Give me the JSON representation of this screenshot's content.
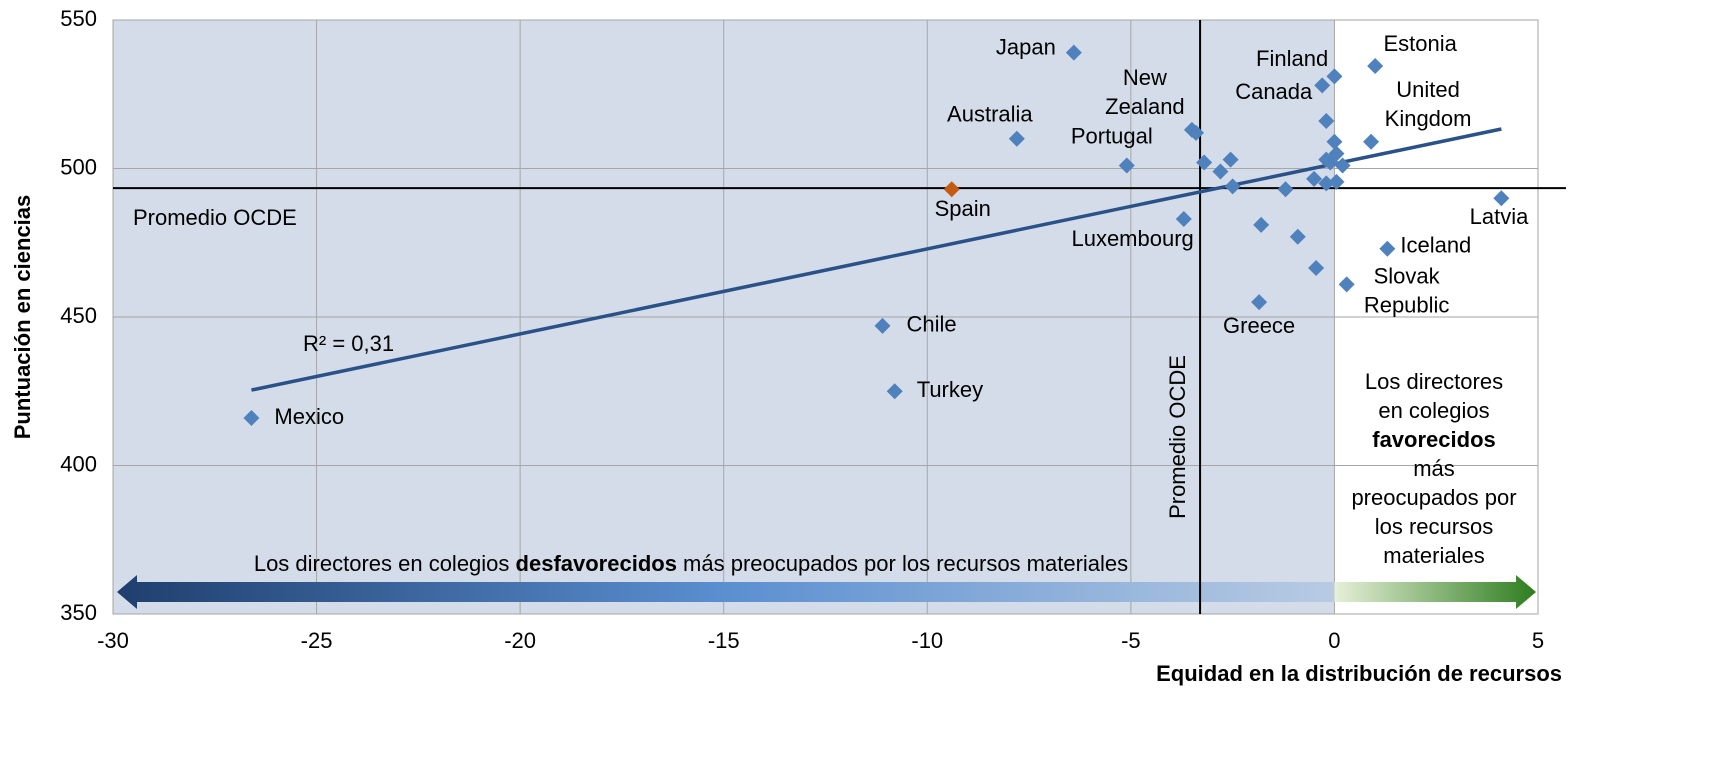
{
  "chart_data": {
    "type": "scatter",
    "xlabel": "Equidad en la distribución de recursos",
    "ylabel": "Puntuación en ciencias",
    "xlim": [
      -30,
      5
    ],
    "xticks": [
      -30,
      -25,
      -20,
      -15,
      -10,
      -5,
      0,
      5
    ],
    "ylim": [
      350,
      550
    ],
    "yticks": [
      350,
      400,
      450,
      500,
      550
    ],
    "grid": true,
    "color": "#4f81bd",
    "shaded_region": {
      "x": [
        -30,
        0
      ],
      "color": "#d3dce8"
    },
    "points": [
      {
        "x": -6.4,
        "y": 539,
        "label": "Japan"
      },
      {
        "x": -7.8,
        "y": 510,
        "label": "Australia"
      },
      {
        "x": -5.1,
        "y": 501,
        "label": "Portugal"
      },
      {
        "x": -3.5,
        "y": 513,
        "label": "New Zealand"
      },
      {
        "x": -9.4,
        "y": 493,
        "label": "Spain",
        "color": "#c55a11"
      },
      {
        "x": -3.7,
        "y": 483,
        "label": "Luxembourg"
      },
      {
        "x": -11.1,
        "y": 447,
        "label": "Chile"
      },
      {
        "x": -10.8,
        "y": 425,
        "label": "Turkey"
      },
      {
        "x": -26.6,
        "y": 416,
        "label": "Mexico"
      },
      {
        "x": -0.3,
        "y": 528,
        "label": "Finland"
      },
      {
        "x": -0.2,
        "y": 516,
        "label": "Canada"
      },
      {
        "x": 1.0,
        "y": 534.5,
        "label": "Estonia"
      },
      {
        "x": 0.9,
        "y": 509,
        "label": "United Kingdom"
      },
      {
        "x": 4.1,
        "y": 490,
        "label": "Latvia"
      },
      {
        "x": 1.3,
        "y": 473,
        "label": "Iceland"
      },
      {
        "x": 0.3,
        "y": 461,
        "label": "Slovak Republic"
      },
      {
        "x": -1.85,
        "y": 455,
        "label": "Greece"
      },
      {
        "x": 0,
        "y": 531
      },
      {
        "x": -3.4,
        "y": 512
      },
      {
        "x": -3.2,
        "y": 502
      },
      {
        "x": -2.8,
        "y": 499
      },
      {
        "x": -2.55,
        "y": 503
      },
      {
        "x": -2.5,
        "y": 494
      },
      {
        "x": -1.8,
        "y": 481
      },
      {
        "x": -1.2,
        "y": 493
      },
      {
        "x": -0.9,
        "y": 477
      },
      {
        "x": -0.45,
        "y": 466.5
      },
      {
        "x": -0.5,
        "y": 496.5
      },
      {
        "x": -0.2,
        "y": 495
      },
      {
        "x": 0,
        "y": 509
      },
      {
        "x": -0.1,
        "y": 502
      },
      {
        "x": 0.05,
        "y": 505
      },
      {
        "x": 0.2,
        "y": 501
      },
      {
        "x": 0.05,
        "y": 495.5
      },
      {
        "x": -0.2,
        "y": 503
      }
    ],
    "trendline": {
      "x": [
        -26.6,
        4.1
      ],
      "y": [
        425.4,
        513.3
      ],
      "color": "#2a5288",
      "label": "R² = 0,31"
    },
    "reference_lines": {
      "y": 493.4,
      "x": -3.3,
      "y_label": "Promedio OCDE",
      "x_label": "Promedio OCDE"
    },
    "bottom_note": {
      "parts": [
        "Los directores en colegios ",
        "desfavorecidos",
        " más preocupados por los recursos materiales"
      ],
      "bold_part": 1
    },
    "right_note": {
      "lines": [
        "Los directores",
        "en colegios",
        "favorecidos",
        "más",
        "preocupados por",
        "los recursos",
        "materiales"
      ],
      "bold_line": 2
    }
  }
}
